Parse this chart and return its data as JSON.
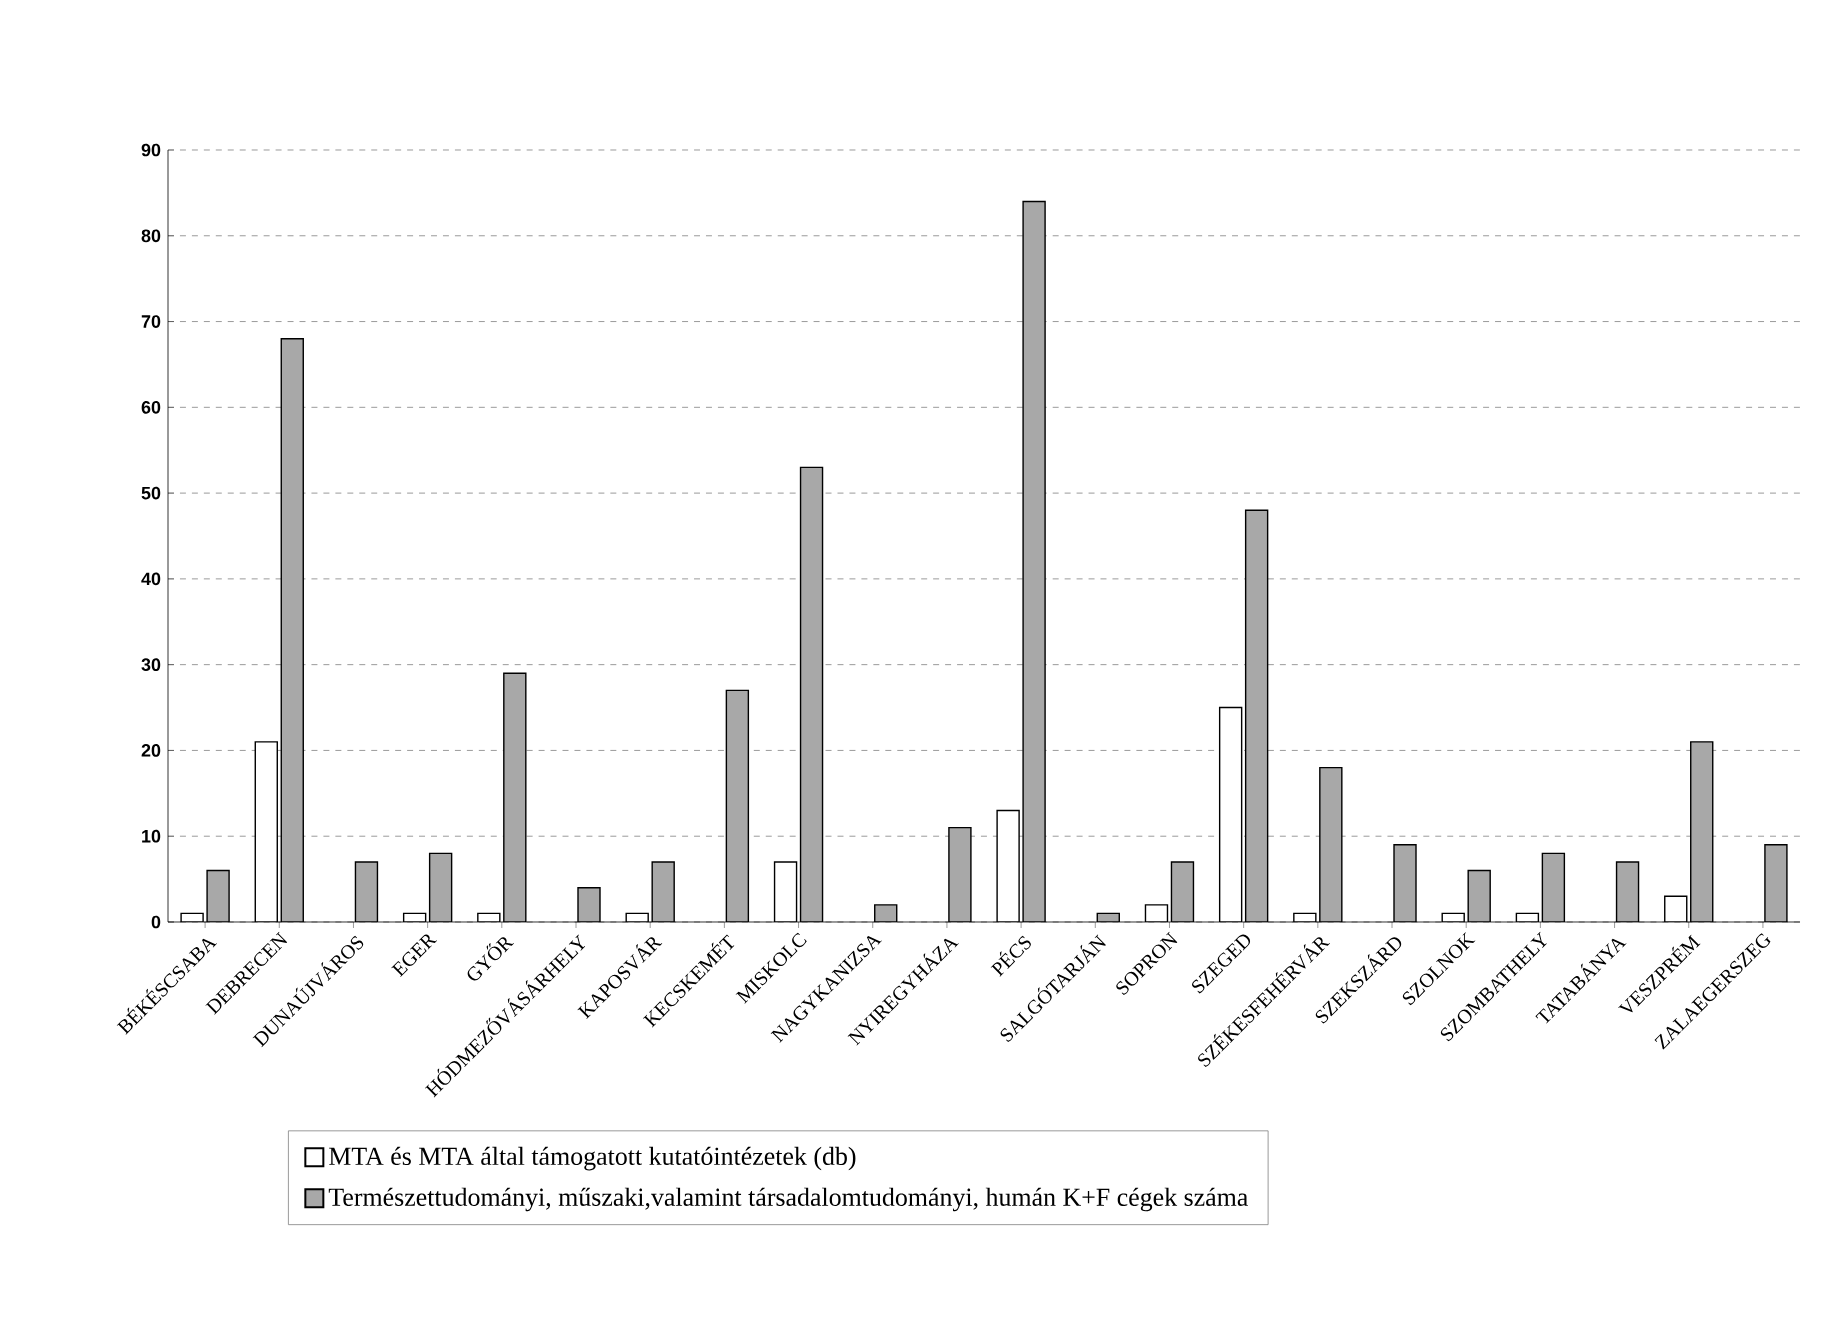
{
  "chart_data": {
    "type": "bar",
    "categories": [
      "BÉKÉSCSABA",
      "DEBRECEN",
      "DUNAÚJVÁROS",
      "EGER",
      "GYŐR",
      "HÓDMEZŐVÁSÁRHELY",
      "KAPOSVÁR",
      "KECSKEMÉT",
      "MISKOLC",
      "NAGYKANIZSA",
      "NYIREGYHÁZA",
      "PÉCS",
      "SALGÓTARJÁN",
      "SOPRON",
      "SZEGED",
      "SZÉKESFEHÉRVÁR",
      "SZEKSZÁRD",
      "SZOLNOK",
      "SZOMBATHELY",
      "TATABÁNYA",
      "VESZPRÉM",
      "ZALAEGERSZEG"
    ],
    "series": [
      {
        "name": "MTA és MTA által támogatott kutatóintézetek (db)",
        "color": "#ffffff",
        "values": [
          1,
          21,
          null,
          1,
          1,
          null,
          1,
          null,
          7,
          null,
          null,
          13,
          null,
          2,
          25,
          1,
          null,
          1,
          1,
          null,
          3,
          null
        ]
      },
      {
        "name": "Természettudományi, műszaki,valamint társadalomtudományi, humán K+F cégek száma",
        "color": "#a8a8a8",
        "values": [
          6,
          68,
          7,
          8,
          29,
          4,
          7,
          27,
          53,
          2,
          11,
          84,
          1,
          7,
          48,
          18,
          9,
          6,
          8,
          7,
          21,
          9
        ]
      }
    ],
    "ylim": [
      0,
      90
    ],
    "yticks": [
      0,
      10,
      20,
      30,
      40,
      50,
      60,
      70,
      80,
      90
    ],
    "grid": "y",
    "legend": "bottom"
  }
}
